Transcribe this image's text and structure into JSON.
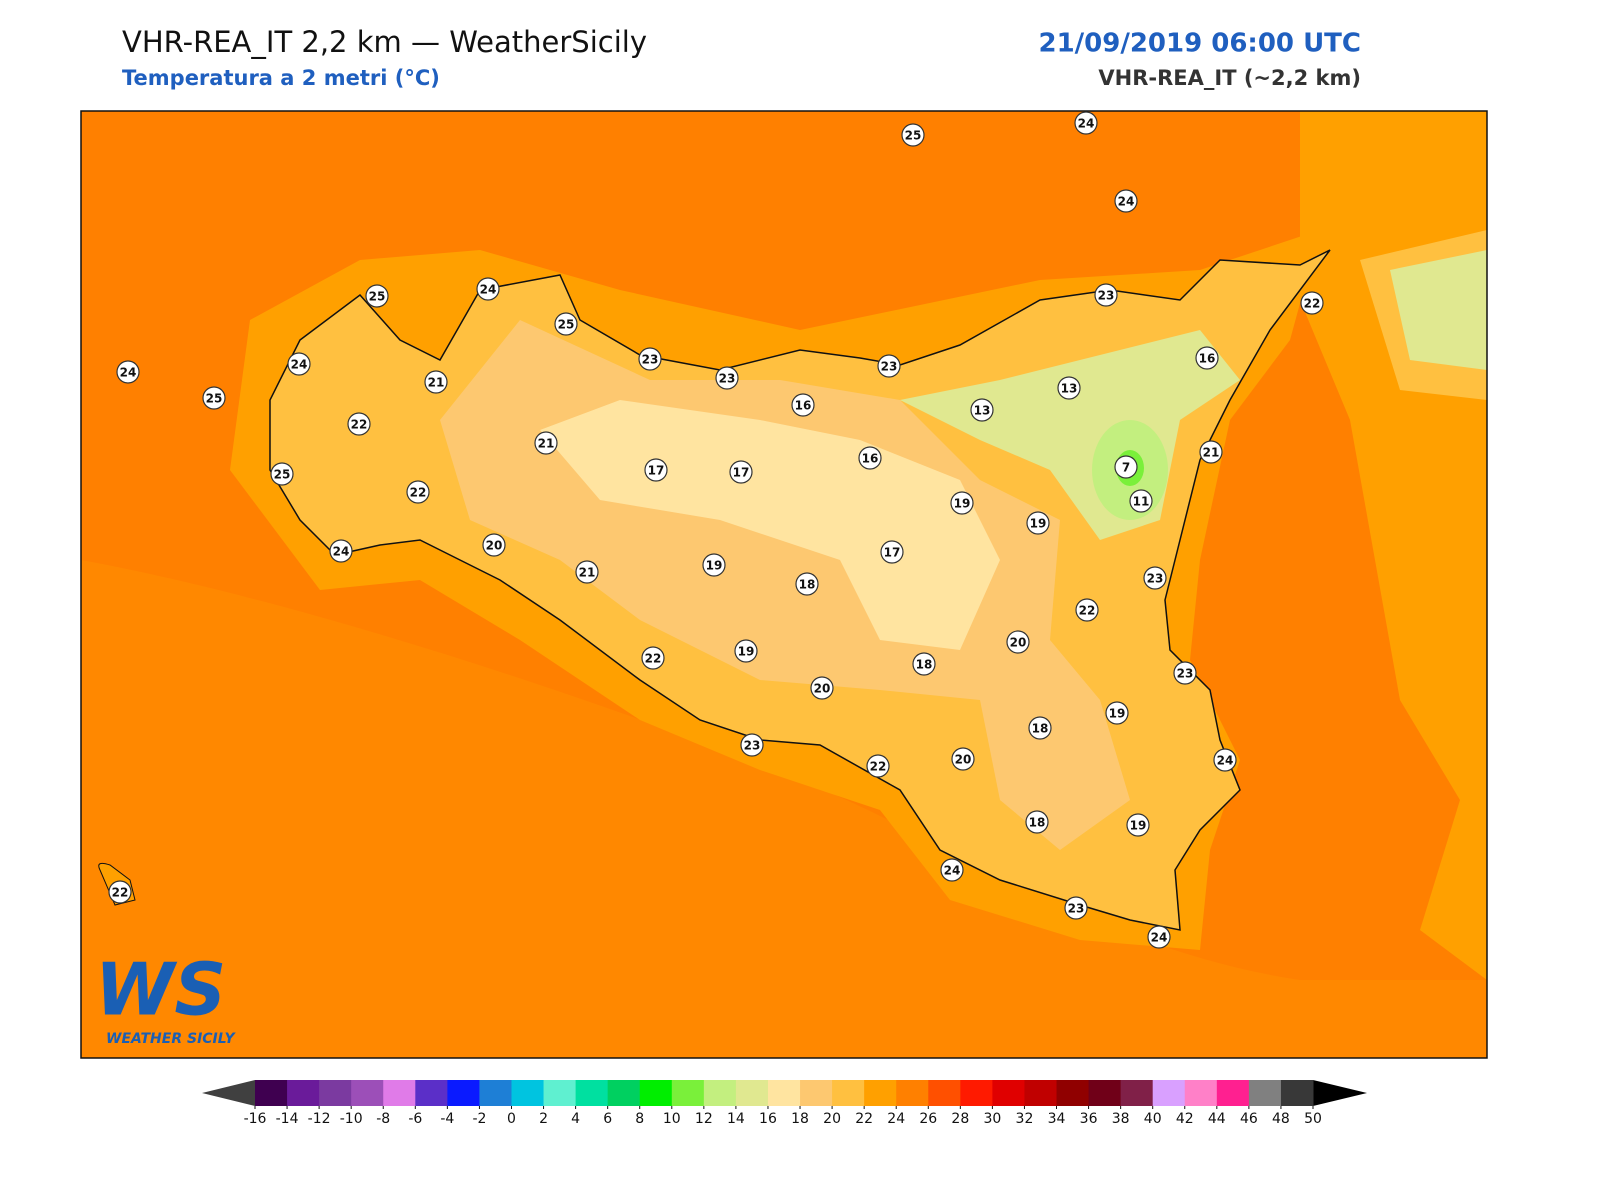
{
  "header": {
    "title": "VHR-REA_IT 2,2 km — WeatherSicily",
    "subtitle": "Temperatura a 2 metri (°C)",
    "datetime": "21/09/2019 06:00 UTC",
    "model": "VHR-REA_IT (~2,2 km)"
  },
  "logo": {
    "initials": "WS",
    "name": "WEATHER SICILY"
  },
  "stations": [
    25,
    24,
    24,
    25,
    24,
    25,
    24,
    24,
    25,
    21,
    22,
    25,
    22,
    24,
    23,
    23,
    23,
    23,
    22,
    16,
    13,
    13,
    16,
    21,
    17,
    17,
    16,
    7,
    11,
    21,
    19,
    19,
    20,
    21,
    19,
    18,
    17,
    23,
    22,
    20,
    22,
    19,
    18,
    20,
    23,
    19,
    18,
    23,
    22,
    20,
    24,
    18,
    19,
    24,
    23,
    24,
    22
  ],
  "colorbar": {
    "ticks": [
      -16,
      -14,
      -12,
      -10,
      -8,
      -6,
      -4,
      -2,
      0,
      2,
      4,
      6,
      8,
      10,
      12,
      14,
      16,
      18,
      20,
      22,
      24,
      26,
      28,
      30,
      32,
      34,
      36,
      38,
      40,
      42,
      44,
      46,
      48,
      50
    ],
    "colors": [
      "#3f0050",
      "#6a1b9a",
      "#7b3aa0",
      "#9c4fb8",
      "#e07be8",
      "#5b2fc8",
      "#0a1aff",
      "#1e7fd6",
      "#00c4e0",
      "#5ff0d0",
      "#00e0a0",
      "#00d060",
      "#00ee00",
      "#7af03a",
      "#c3ef7f",
      "#e0e890",
      "#ffe4a0",
      "#fdc870",
      "#ffc040",
      "#ffa000",
      "#ff8000",
      "#ff5000",
      "#ff1a00",
      "#e00000",
      "#c00000",
      "#900000",
      "#700018",
      "#802048",
      "#d9a0ff",
      "#ff80c8",
      "#ff2090",
      "#808080",
      "#383838"
    ],
    "under_color": "#404040",
    "over_color": "#000000"
  }
}
